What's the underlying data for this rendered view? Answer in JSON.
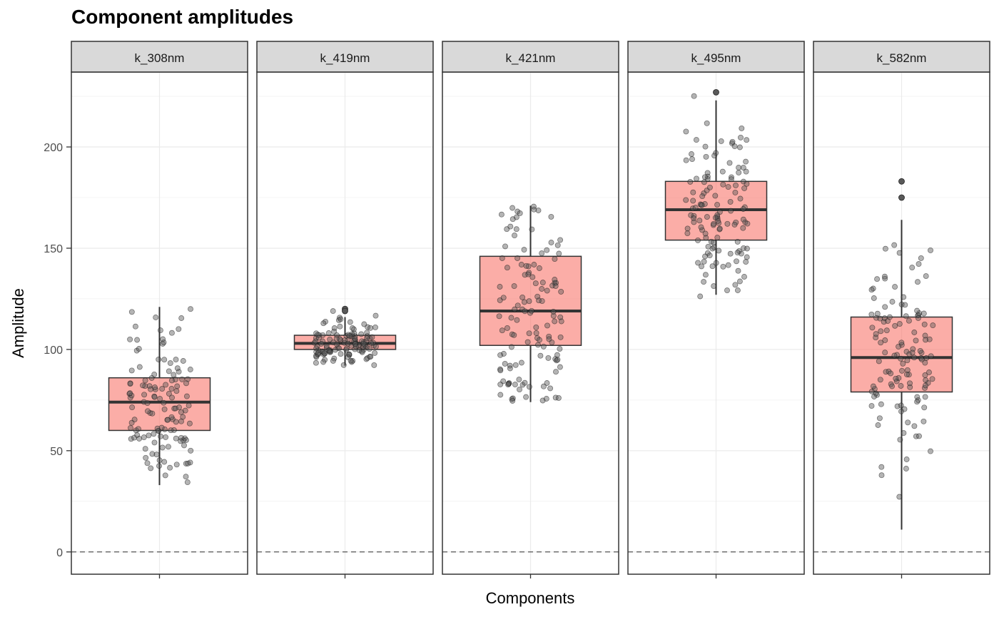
{
  "chart_data": {
    "type": "boxplot",
    "title": "Component amplitudes",
    "xlabel": "Components",
    "ylabel": "Amplitude",
    "ylim": [
      -11,
      237
    ],
    "yticks": [
      0,
      50,
      100,
      150,
      200
    ],
    "reference_line": 0,
    "grid": true,
    "facets": [
      "k_308nm",
      "k_419nm",
      "k_421nm",
      "k_495nm",
      "k_582nm"
    ],
    "boxes": [
      {
        "facet": "k_308nm",
        "q1": 60,
        "median": 74,
        "q3": 86,
        "whisker_low": 33,
        "whisker_high": 121,
        "outliers": []
      },
      {
        "facet": "k_419nm",
        "q1": 100,
        "median": 103,
        "q3": 107,
        "whisker_low": 92,
        "whisker_high": 116,
        "outliers": [
          120,
          119
        ]
      },
      {
        "facet": "k_421nm",
        "q1": 102,
        "median": 119,
        "q3": 146,
        "whisker_low": 74,
        "whisker_high": 171,
        "outliers": []
      },
      {
        "facet": "k_495nm",
        "q1": 154,
        "median": 169,
        "q3": 183,
        "whisker_low": 127,
        "whisker_high": 223,
        "outliers": [
          227
        ]
      },
      {
        "facet": "k_582nm",
        "q1": 79,
        "median": 96,
        "q3": 116,
        "whisker_low": 11,
        "whisker_high": 164,
        "outliers": [
          183,
          175
        ]
      }
    ],
    "points": [
      {
        "facet": "k_308nm",
        "n": 130,
        "seed": 11,
        "min": 33,
        "max": 121
      },
      {
        "facet": "k_419nm",
        "n": 130,
        "seed": 23,
        "min": 92,
        "max": 120
      },
      {
        "facet": "k_421nm",
        "n": 130,
        "seed": 37,
        "min": 74,
        "max": 171
      },
      {
        "facet": "k_495nm",
        "n": 130,
        "seed": 41,
        "min": 126,
        "max": 227
      },
      {
        "facet": "k_582nm",
        "n": 130,
        "seed": 53,
        "min": 10,
        "max": 183
      }
    ],
    "colors": {
      "box_fill": "#f8766d",
      "box_stroke": "#333333",
      "strip_fill": "#d9d9d9",
      "point_fill": "#595959",
      "grid_major": "#ebebeb",
      "grid_minor": "#f4f4f4"
    }
  }
}
